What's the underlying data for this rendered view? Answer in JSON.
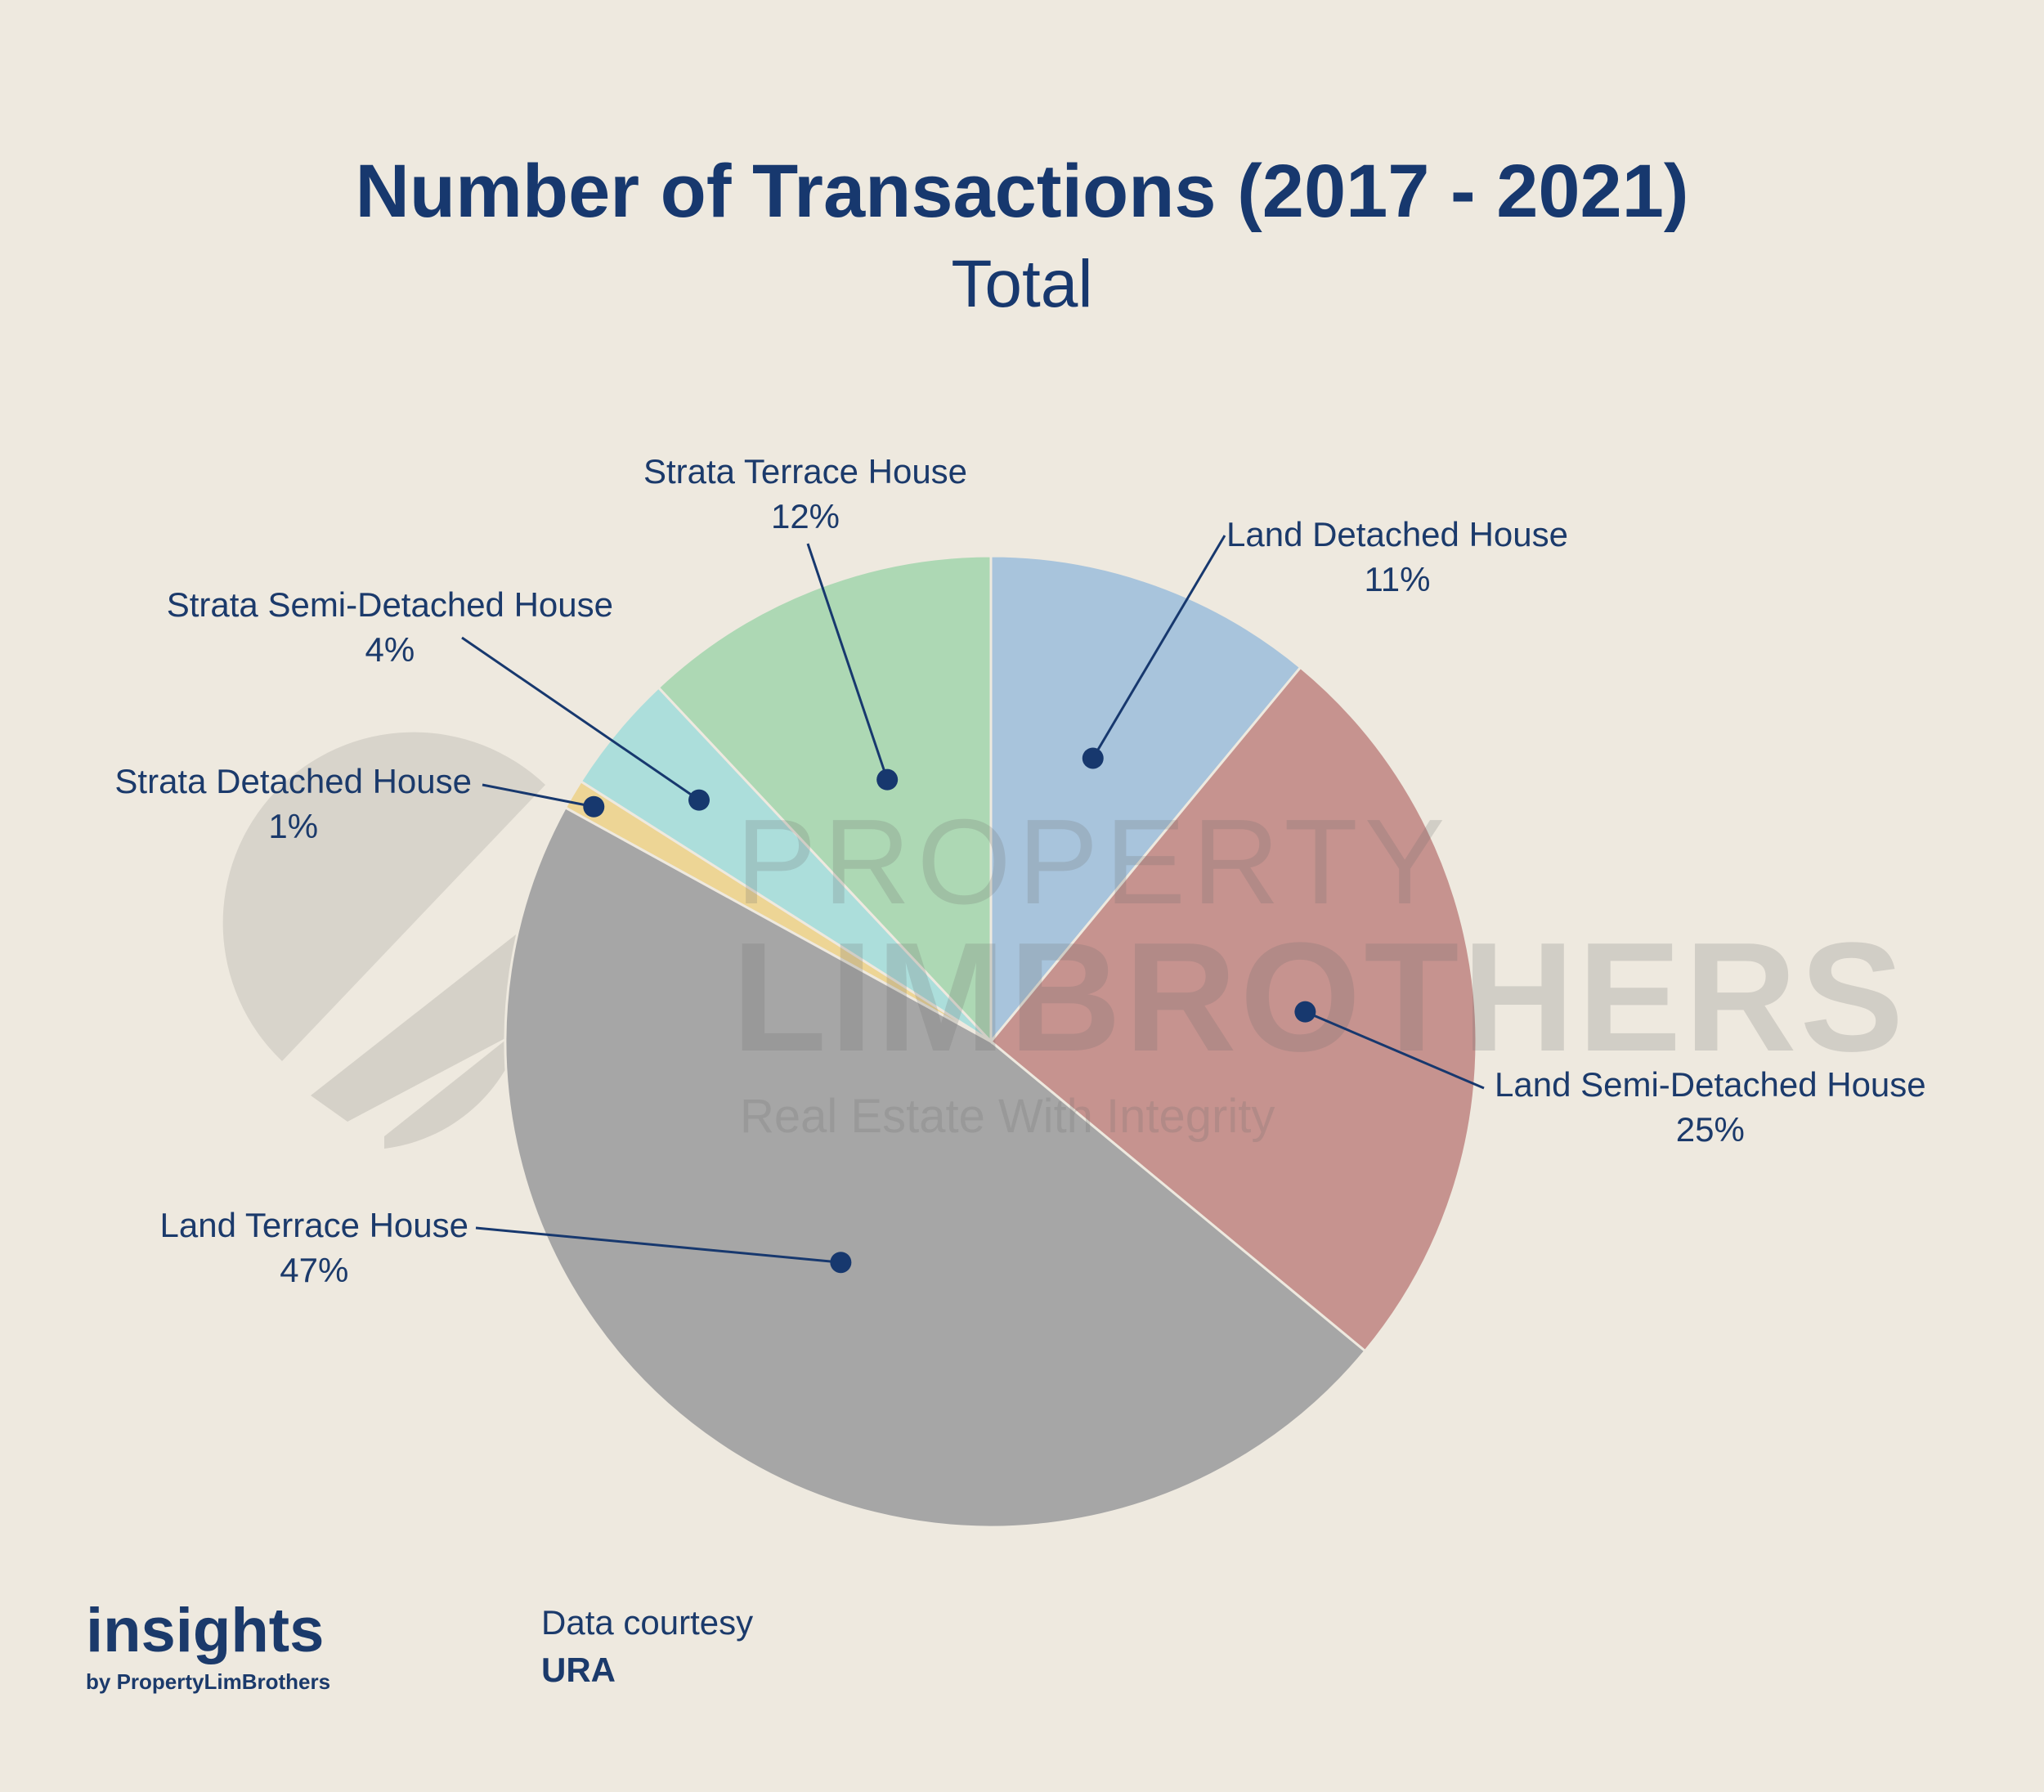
{
  "chart_data": {
    "type": "pie",
    "title": "Number of Transactions (2017 - 2021)",
    "subtitle": "Total",
    "slices": [
      {
        "label": "Land Detached House",
        "value": 11,
        "display": "11%",
        "color": "#a8c4dc"
      },
      {
        "label": "Land Semi-Detached House",
        "value": 25,
        "display": "25%",
        "color": "#c6938f"
      },
      {
        "label": "Land Terrace House",
        "value": 47,
        "display": "47%",
        "color": "#a6a6a6"
      },
      {
        "label": "Strata Detached House",
        "value": 1,
        "display": "1%",
        "color": "#edd595"
      },
      {
        "label": "Strata Semi-Detached House",
        "value": 4,
        "display": "4%",
        "color": "#acdedb"
      },
      {
        "label": "Strata Terrace House",
        "value": 12,
        "display": "12%",
        "color": "#add8b4"
      }
    ]
  },
  "watermark": {
    "line1": "PROPERTY",
    "line2": "LIMBROTHERS",
    "tagline": "Real Estate With Integrity"
  },
  "footer": {
    "brand": "insights",
    "brand_sub": "by PropertyLimBrothers",
    "source_label": "Data courtesy",
    "source_value": "URA"
  },
  "colors": {
    "primary": "#17386e",
    "background": "#eee9df",
    "leader": "#17386e"
  }
}
